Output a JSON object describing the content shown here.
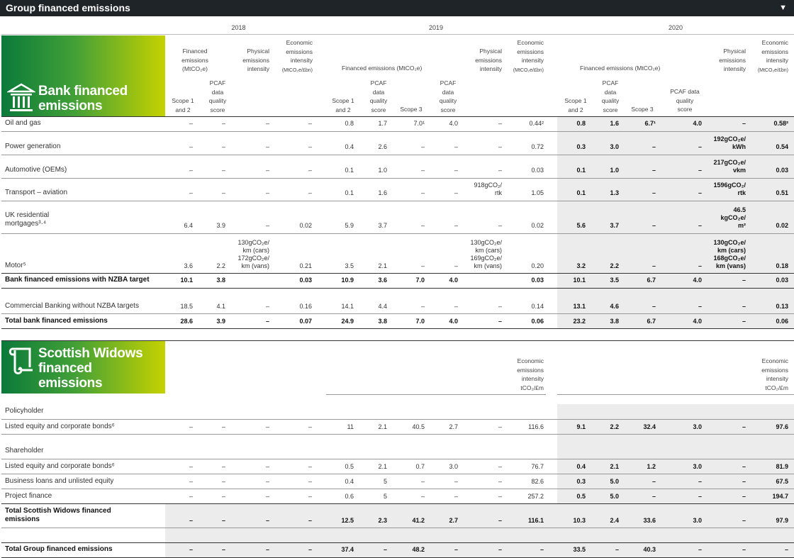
{
  "title": "Group financed emissions",
  "years": [
    "2018",
    "2019",
    "2020"
  ],
  "bank": {
    "heading": [
      "Bank financed",
      "emissions"
    ],
    "icon": "bank-building-icon",
    "header_2018": {
      "fin": [
        "Financed",
        "emissions",
        "(MtCO₂e)"
      ],
      "phys": [
        "Physical",
        "emissions",
        "intensity"
      ],
      "econ": [
        "Economic",
        "emissions",
        "intensity",
        "(MtCO₂e/£bn)"
      ],
      "scope": [
        "Scope 1",
        "and 2"
      ],
      "pcaf": [
        "PCAF",
        "data",
        "quality",
        "score"
      ]
    },
    "header_2019": {
      "fin": "Financed emissions (MtCO₂e)",
      "phys": [
        "Physical",
        "emissions",
        "intensity"
      ],
      "econ": [
        "Economic",
        "emissions",
        "intensity",
        "(MtCO₂e/£bn)"
      ],
      "scope12": [
        "Scope 1",
        "and 2"
      ],
      "pcaf1": [
        "PCAF",
        "data",
        "quality",
        "score"
      ],
      "scope3": "Scope 3",
      "pcaf2": [
        "PCAF",
        "data",
        "quality",
        "score"
      ]
    },
    "header_2020": {
      "fin": "Financed emissions (MtCO₂e)",
      "phys": [
        "Physical",
        "emissions",
        "intensity"
      ],
      "econ": [
        "Economic",
        "emissions",
        "intensity",
        "(MtCO₂e/£bn)"
      ],
      "scope12": [
        "Scope 1",
        "and 2"
      ],
      "pcaf1": [
        "PCAF",
        "data",
        "quality",
        "score"
      ],
      "scope3": "Scope 3",
      "pcaf2": [
        "PCAF data",
        "quality",
        "score"
      ]
    },
    "rows": [
      {
        "label": "Oil and gas",
        "v": [
          "–",
          "–",
          "–",
          "–",
          "0.8",
          "1.7",
          "7.0¹",
          "4.0",
          "–",
          "0.44²",
          "0.8",
          "1.6",
          "6.7¹",
          "4.0",
          "–",
          "0.58²"
        ]
      },
      {
        "label": "Power generation",
        "v": [
          "–",
          "–",
          "–",
          "–",
          "0.4",
          "2.6",
          "–",
          "–",
          "–",
          "0.72",
          "0.3",
          "3.0",
          "–",
          "–",
          "192gCO₂e/ kWh",
          "0.54"
        ]
      },
      {
        "label": "Automotive (OEMs)",
        "v": [
          "–",
          "–",
          "–",
          "–",
          "0.1",
          "1.0",
          "–",
          "–",
          "–",
          "0.03",
          "0.1",
          "1.0",
          "–",
          "–",
          "217gCO₂e/ vkm",
          "0.03"
        ]
      },
      {
        "label": "Transport – aviation",
        "v": [
          "–",
          "–",
          "–",
          "–",
          "0.1",
          "1.6",
          "–",
          "–",
          "918gCO₂/ rtk",
          "1.05",
          "0.1",
          "1.3",
          "–",
          "–",
          "1596gCO₂/ rtk",
          "0.51"
        ]
      },
      {
        "label": "UK residential mortgages³·⁴",
        "v": [
          "6.4",
          "3.9",
          "–",
          "0.02",
          "5.9",
          "3.7",
          "–",
          "–",
          "–",
          "0.02",
          "5.6",
          "3.7",
          "–",
          "–",
          "46.5 kgCO₂e/ m²",
          "0.02"
        ]
      },
      {
        "label": "Motor⁵",
        "v": [
          "3.6",
          "2.2",
          "130gCO₂e/ km (cars) 172gCO₂e/ km (vans)",
          "0.21",
          "3.5",
          "2.1",
          "–",
          "–",
          "130gCO₂e/ km (cars) 169gCO₂e/ km (vans)",
          "0.20",
          "3.2",
          "2.2",
          "–",
          "–",
          "130gCO₂e/ km (cars) 168gCO₂e/ km (vans)",
          "0.18"
        ]
      },
      {
        "label": "Bank financed emissions with NZBA target",
        "v": [
          "10.1",
          "3.8",
          "",
          "0.03",
          "10.9",
          "3.6",
          "7.0",
          "4.0",
          "",
          "0.03",
          "10.1",
          "3.5",
          "6.7",
          "4.0",
          "–",
          "0.03"
        ]
      },
      {
        "label": "Commercial Banking without NZBA targets",
        "v": [
          "18.5",
          "4.1",
          "–",
          "0.16",
          "14.1",
          "4.4",
          "–",
          "–",
          "–",
          "0.14",
          "13.1",
          "4.6",
          "–",
          "–",
          "–",
          "0.13"
        ]
      },
      {
        "label": "Total bank financed emissions",
        "v": [
          "28.6",
          "3.9",
          "–",
          "0.07",
          "24.9",
          "3.8",
          "7.0",
          "4.0",
          "–",
          "0.06",
          "23.2",
          "3.8",
          "6.7",
          "4.0",
          "–",
          "0.06"
        ]
      }
    ]
  },
  "sw": {
    "heading": [
      "Scottish Widows",
      "financed",
      "emissions"
    ],
    "icon": "scroll-icon",
    "econ_2019": [
      "Economic",
      "emissions",
      "intensity",
      "tCO₂/£m"
    ],
    "econ_2020": [
      "Economic",
      "emissions",
      "intensity",
      "tCO₂/£m"
    ],
    "section_policyholder": "Policyholder",
    "section_shareholder": "Shareholder",
    "rows": [
      {
        "label": "Listed equity and corporate bonds⁶",
        "v": [
          "–",
          "–",
          "–",
          "–",
          "11",
          "2.1",
          "40.5",
          "2.7",
          "–",
          "116.6",
          "9.1",
          "2.2",
          "32.4",
          "3.0",
          "–",
          "97.6"
        ]
      },
      {
        "label": "Listed equity and corporate bonds⁶",
        "v": [
          "–",
          "–",
          "–",
          "–",
          "0.5",
          "2.1",
          "0.7",
          "3.0",
          "–",
          "76.7",
          "0.4",
          "2.1",
          "1.2",
          "3.0",
          "–",
          "81.9"
        ]
      },
      {
        "label": "Business loans and unlisted equity",
        "v": [
          "–",
          "–",
          "–",
          "–",
          "0.4",
          "5",
          "–",
          "–",
          "–",
          "82.6",
          "0.3",
          "5.0",
          "–",
          "–",
          "–",
          "67.5"
        ]
      },
      {
        "label": "Project finance",
        "v": [
          "–",
          "–",
          "–",
          "–",
          "0.6",
          "5",
          "–",
          "–",
          "–",
          "257.2",
          "0.5",
          "5.0",
          "–",
          "–",
          "–",
          "194.7"
        ]
      },
      {
        "label": "Total Scottish Widows financed emissions",
        "v": [
          "–",
          "–",
          "–",
          "–",
          "12.5",
          "2.3",
          "41.2",
          "2.7",
          "–",
          "116.1",
          "10.3",
          "2.4",
          "33.6",
          "3.0",
          "–",
          "97.9"
        ]
      },
      {
        "label": "Total Group financed emissions",
        "v": [
          "–",
          "–",
          "–",
          "–",
          "37.4",
          "–",
          "48.2",
          "–",
          "–",
          "–",
          "33.5",
          "–",
          "40.3",
          "–",
          "–",
          "–"
        ]
      }
    ]
  }
}
